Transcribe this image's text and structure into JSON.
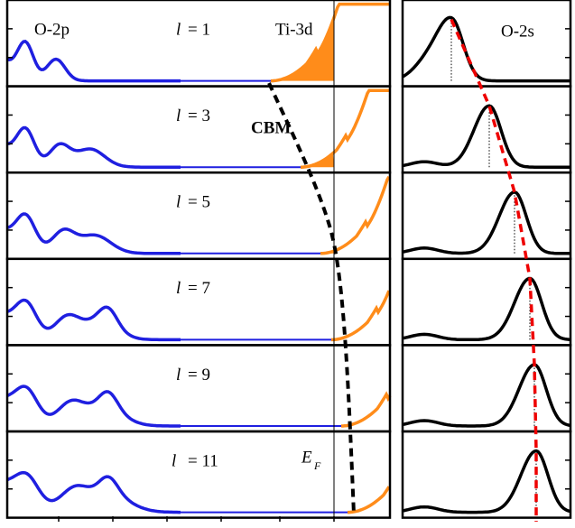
{
  "labels": {
    "left": "O-2p",
    "conduction": "Ti-3d",
    "right": "O-2s",
    "cbm": "CBM",
    "fermi": "E",
    "fermi_sub": "F"
  },
  "panels": [
    {
      "symbol": "l",
      "text": "= 1"
    },
    {
      "symbol": "l",
      "text": "= 3"
    },
    {
      "symbol": "l",
      "text": "= 5"
    },
    {
      "symbol": "l",
      "text": "= 7"
    },
    {
      "symbol": "l",
      "text": "= 9"
    },
    {
      "symbol": "l",
      "text": "= 11"
    }
  ]
}
